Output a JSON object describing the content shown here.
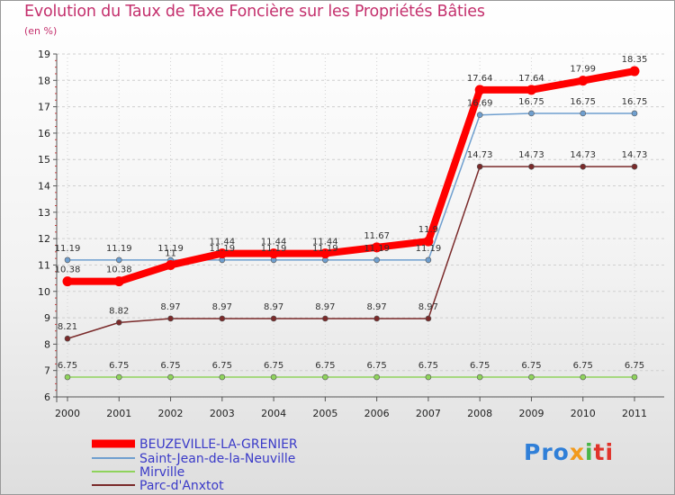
{
  "chart_data": {
    "type": "line",
    "title": "Evolution du Taux de Taxe Foncière sur les Propriétés Bâties",
    "ylabel": "(en %)",
    "ylim": [
      6,
      19
    ],
    "yticks": [
      "6",
      "7",
      "8",
      "9",
      "10",
      "11",
      "12",
      "13",
      "14",
      "15",
      "16",
      "17",
      "18",
      "19"
    ],
    "categories": [
      "2000",
      "2001",
      "2002",
      "2003",
      "2004",
      "2005",
      "2006",
      "2007",
      "2008",
      "2009",
      "2010",
      "2011"
    ],
    "series": [
      {
        "name": "BEUZEVILLE-LA-GRENIER",
        "color": "#ff0000",
        "values": [
          10.38,
          10.38,
          11,
          11.44,
          11.44,
          11.44,
          11.67,
          11.9,
          17.64,
          17.64,
          17.99,
          18.35
        ],
        "labels": [
          "10.38",
          "10.38",
          "11",
          "11.44",
          "11.44",
          "11.44",
          "11.67",
          "11.9",
          "17.64",
          "17.64",
          "17.99",
          "18.35"
        ]
      },
      {
        "name": "Saint-Jean-de-la-Neuville",
        "color": "#6f9fcf",
        "values": [
          11.19,
          11.19,
          11.19,
          11.19,
          11.19,
          11.19,
          11.19,
          11.19,
          16.69,
          16.75,
          16.75,
          16.75
        ],
        "labels": [
          "11.19",
          "11.19",
          "11.19",
          "11.19",
          "11.19",
          "11.19",
          "11.19",
          "11.19",
          "16.69",
          "16.75",
          "16.75",
          "16.75"
        ]
      },
      {
        "name": "Mirville",
        "color": "#8fd35c",
        "values": [
          6.75,
          6.75,
          6.75,
          6.75,
          6.75,
          6.75,
          6.75,
          6.75,
          6.75,
          6.75,
          6.75,
          6.75
        ],
        "labels": [
          "6.75",
          "6.75",
          "6.75",
          "6.75",
          "6.75",
          "6.75",
          "6.75",
          "6.75",
          "6.75",
          "6.75",
          "6.75",
          "6.75"
        ]
      },
      {
        "name": "Parc-d'Anxtot",
        "color": "#7a2a2a",
        "values": [
          8.21,
          8.82,
          8.97,
          8.97,
          8.97,
          8.97,
          8.97,
          8.97,
          14.73,
          14.73,
          14.73,
          14.73
        ],
        "labels": [
          "8.21",
          "8.82",
          "8.97",
          "8.97",
          "8.97",
          "8.97",
          "8.97",
          "8.97",
          "14.73",
          "14.73",
          "14.73",
          "14.73"
        ]
      }
    ],
    "legend_position": "bottom-left"
  },
  "logo": {
    "p1": "Pro",
    "p2": "x",
    "p3": "i",
    "p4": "ti"
  }
}
